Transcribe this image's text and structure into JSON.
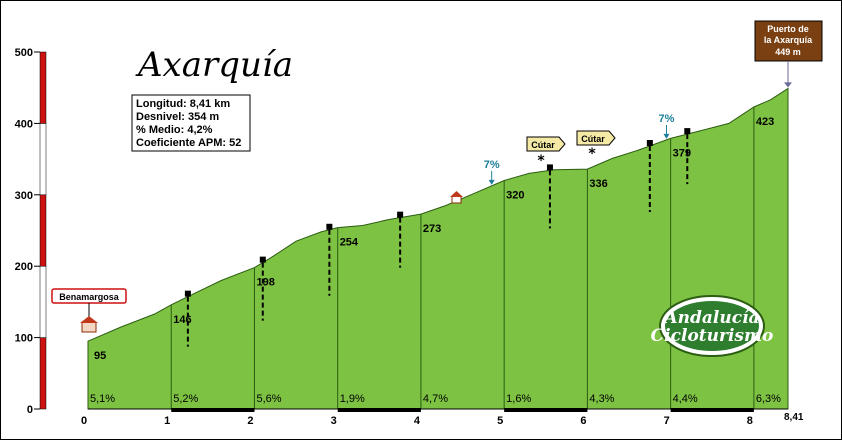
{
  "chart_data": {
    "type": "area",
    "title": "Axarquía",
    "stats": [
      "Longitud: 8,41 km",
      "Desnivel: 354 m",
      "% Medio: 4,2%",
      "Coeficiente APM: 52"
    ],
    "xlim": [
      0,
      8.41
    ],
    "ylim": [
      0,
      500
    ],
    "x_ticks": [
      "0",
      "1",
      "2",
      "3",
      "4",
      "5",
      "6",
      "7",
      "8",
      "8,41"
    ],
    "y_ticks": [
      "0",
      "100",
      "200",
      "300",
      "400",
      "500"
    ],
    "profile": {
      "x": [
        0,
        0.4,
        0.8,
        1.0,
        1.3,
        1.6,
        2.0,
        2.2,
        2.5,
        2.8,
        3.0,
        3.3,
        3.6,
        4.0,
        4.3,
        4.6,
        5.0,
        5.3,
        5.6,
        6.0,
        6.3,
        6.6,
        7.0,
        7.3,
        7.7,
        8.0,
        8.2,
        8.41
      ],
      "y": [
        95,
        115,
        133,
        146,
        163,
        180,
        198,
        212,
        235,
        248,
        254,
        257,
        265,
        273,
        285,
        300,
        320,
        330,
        335,
        336,
        351,
        362,
        379,
        388,
        400,
        423,
        433,
        449
      ]
    },
    "segments": [
      {
        "km": 0,
        "grade": "5,1%",
        "altitude": "95"
      },
      {
        "km": 1,
        "grade": "5,2%",
        "altitude": "146"
      },
      {
        "km": 2,
        "grade": "5,6%",
        "altitude": "198"
      },
      {
        "km": 3,
        "grade": "1,9%",
        "altitude": "254"
      },
      {
        "km": 4,
        "grade": "4,7%",
        "altitude": "273"
      },
      {
        "km": 5,
        "grade": "1,6%",
        "altitude": "320"
      },
      {
        "km": 6,
        "grade": "4,3%",
        "altitude": "336"
      },
      {
        "km": 7,
        "grade": "4,4%",
        "altitude": "379"
      },
      {
        "km": 8,
        "grade": "6,3%",
        "altitude": "423"
      }
    ],
    "places": [
      {
        "name": "Benamargosa",
        "km": 0
      },
      {
        "name": "Cútar",
        "km": 5.5
      },
      {
        "name": "Cútar",
        "km": 6.1
      }
    ],
    "summit": {
      "name_line1": "Puerto de",
      "name_line2": "la Axarquía",
      "altitude": "449 m",
      "km": 8.41
    },
    "ramps": [
      {
        "label": "7%",
        "km": 4.85
      },
      {
        "label": "7%",
        "km": 6.95
      }
    ],
    "junctions": [
      1.2,
      2.1,
      2.9,
      3.75,
      5.55,
      6.75,
      7.2
    ],
    "logo": {
      "line1": "Andalucía",
      "line2": "Cicloturismo"
    },
    "colors": {
      "fill": "#7dc242",
      "edge": "#2b5d12",
      "axis_bar": "#cc1111",
      "summit_box": "#7a4012"
    }
  }
}
